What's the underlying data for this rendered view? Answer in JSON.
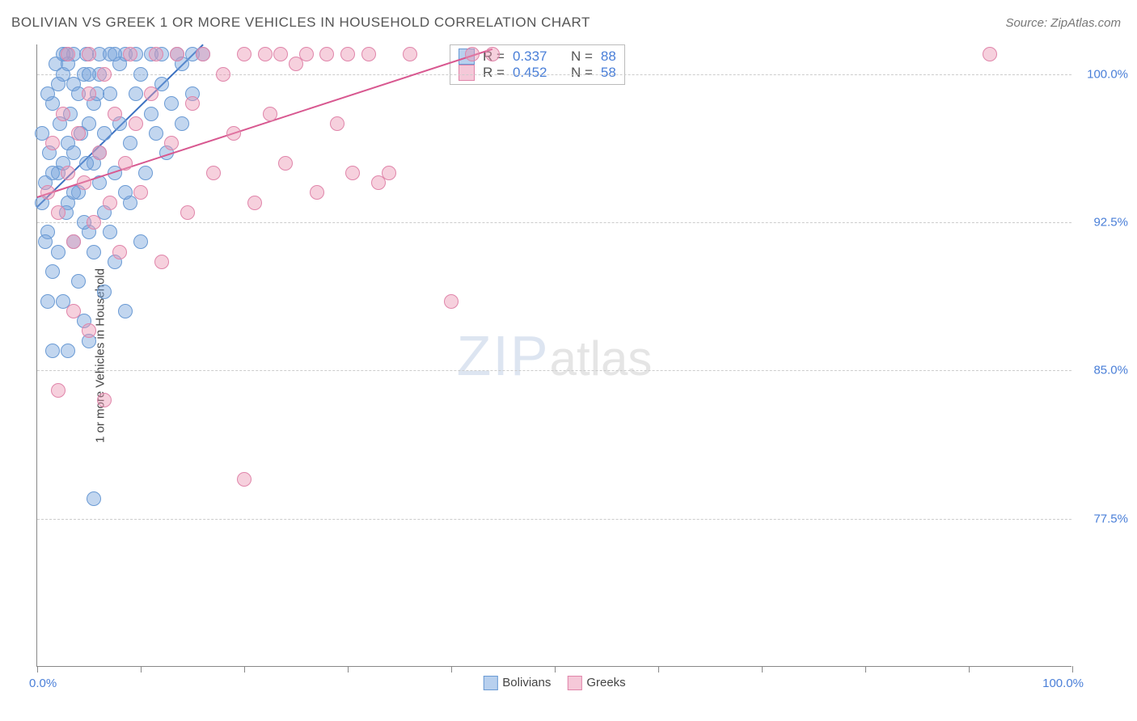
{
  "title": "BOLIVIAN VS GREEK 1 OR MORE VEHICLES IN HOUSEHOLD CORRELATION CHART",
  "source": "Source: ZipAtlas.com",
  "yaxis_title": "1 or more Vehicles in Household",
  "watermark_a": "ZIP",
  "watermark_b": "atlas",
  "chart": {
    "type": "scatter",
    "xlim": [
      0,
      100
    ],
    "ylim": [
      70,
      101.5
    ],
    "x_tick_positions": [
      0,
      10,
      20,
      30,
      40,
      50,
      60,
      70,
      80,
      90,
      100
    ],
    "x_labels": {
      "min": "0.0%",
      "max": "100.0%"
    },
    "y_ticks": [
      {
        "v": 77.5,
        "label": "77.5%"
      },
      {
        "v": 85.0,
        "label": "85.0%"
      },
      {
        "v": 92.5,
        "label": "92.5%"
      },
      {
        "v": 100.0,
        "label": "100.0%"
      }
    ],
    "grid_color": "#cccccc",
    "axis_color": "#888888",
    "series": [
      {
        "name": "Bolivians",
        "color_fill": "rgba(120,165,220,0.45)",
        "color_stroke": "#6a9ad4",
        "swatch_fill": "#b8d0ee",
        "swatch_border": "#6a9ad4",
        "R": "0.337",
        "N": "88",
        "trend": {
          "x1": 0,
          "y1": 93.3,
          "x2": 16,
          "y2": 101.5,
          "color": "#3d72c2"
        },
        "points": [
          [
            0.5,
            93.5
          ],
          [
            0.8,
            94.5
          ],
          [
            1.0,
            92.0
          ],
          [
            1.2,
            96.0
          ],
          [
            1.5,
            98.5
          ],
          [
            1.8,
            100.5
          ],
          [
            2.0,
            91.0
          ],
          [
            2.0,
            95.0
          ],
          [
            2.2,
            97.5
          ],
          [
            2.5,
            100.0
          ],
          [
            2.8,
            101.0
          ],
          [
            3.0,
            93.5
          ],
          [
            3.0,
            96.5
          ],
          [
            3.2,
            98.0
          ],
          [
            3.5,
            99.5
          ],
          [
            3.5,
            101.0
          ],
          [
            4.0,
            89.5
          ],
          [
            4.0,
            94.0
          ],
          [
            4.2,
            97.0
          ],
          [
            4.5,
            100.0
          ],
          [
            4.8,
            101.0
          ],
          [
            5.0,
            86.5
          ],
          [
            5.0,
            92.0
          ],
          [
            5.5,
            95.5
          ],
          [
            5.5,
            98.5
          ],
          [
            6.0,
            101.0
          ],
          [
            6.0,
            100.0
          ],
          [
            6.5,
            93.0
          ],
          [
            6.5,
            97.0
          ],
          [
            7.0,
            99.0
          ],
          [
            7.0,
            101.0
          ],
          [
            7.5,
            90.5
          ],
          [
            7.5,
            95.0
          ],
          [
            8.0,
            97.5
          ],
          [
            8.0,
            100.5
          ],
          [
            8.5,
            101.0
          ],
          [
            8.5,
            88.0
          ],
          [
            9.0,
            93.5
          ],
          [
            9.0,
            96.5
          ],
          [
            9.5,
            99.0
          ],
          [
            9.5,
            101.0
          ],
          [
            10.0,
            100.0
          ],
          [
            10.0,
            91.5
          ],
          [
            10.5,
            95.0
          ],
          [
            11.0,
            98.0
          ],
          [
            11.0,
            101.0
          ],
          [
            11.5,
            97.0
          ],
          [
            12.0,
            99.5
          ],
          [
            12.0,
            101.0
          ],
          [
            12.5,
            96.0
          ],
          [
            13.0,
            98.5
          ],
          [
            13.5,
            101.0
          ],
          [
            14.0,
            97.5
          ],
          [
            14.0,
            100.5
          ],
          [
            15.0,
            99.0
          ],
          [
            15.0,
            101.0
          ],
          [
            16.0,
            101.0
          ],
          [
            1.5,
            90.0
          ],
          [
            2.5,
            88.5
          ],
          [
            3.0,
            86.0
          ],
          [
            4.5,
            87.5
          ],
          [
            6.5,
            89.0
          ],
          [
            5.5,
            78.5
          ],
          [
            1.0,
            88.5
          ],
          [
            1.5,
            86.0
          ],
          [
            2.5,
            95.5
          ],
          [
            3.5,
            94.0
          ],
          [
            4.5,
            92.5
          ],
          [
            5.5,
            91.0
          ],
          [
            6.0,
            94.5
          ],
          [
            7.0,
            92.0
          ],
          [
            8.5,
            94.0
          ],
          [
            1.0,
            99.0
          ],
          [
            2.0,
            99.5
          ],
          [
            3.0,
            100.5
          ],
          [
            4.0,
            99.0
          ],
          [
            5.0,
            100.0
          ],
          [
            5.0,
            97.5
          ],
          [
            6.0,
            96.0
          ],
          [
            0.5,
            97.0
          ],
          [
            0.8,
            91.5
          ],
          [
            1.5,
            95.0
          ],
          [
            2.8,
            93.0
          ],
          [
            3.5,
            96.0
          ],
          [
            4.8,
            95.5
          ],
          [
            5.8,
            99.0
          ],
          [
            7.5,
            101.0
          ],
          [
            2.5,
            101.0
          ],
          [
            3.5,
            91.5
          ]
        ]
      },
      {
        "name": "Greeks",
        "color_fill": "rgba(235,150,180,0.45)",
        "color_stroke": "#e085aa",
        "swatch_fill": "#f5c8d8",
        "swatch_border": "#e085aa",
        "R": "0.452",
        "N": "58",
        "trend": {
          "x1": 0,
          "y1": 93.8,
          "x2": 44,
          "y2": 101.3,
          "color": "#d85890"
        },
        "points": [
          [
            1.0,
            94.0
          ],
          [
            1.5,
            96.5
          ],
          [
            2.0,
            93.0
          ],
          [
            2.5,
            98.0
          ],
          [
            3.0,
            95.0
          ],
          [
            3.0,
            101.0
          ],
          [
            3.5,
            91.5
          ],
          [
            4.0,
            97.0
          ],
          [
            4.5,
            94.5
          ],
          [
            5.0,
            99.0
          ],
          [
            5.0,
            101.0
          ],
          [
            5.5,
            92.5
          ],
          [
            6.0,
            96.0
          ],
          [
            6.5,
            100.0
          ],
          [
            7.0,
            93.5
          ],
          [
            7.5,
            98.0
          ],
          [
            8.0,
            91.0
          ],
          [
            8.5,
            95.5
          ],
          [
            9.0,
            101.0
          ],
          [
            9.5,
            97.5
          ],
          [
            10.0,
            94.0
          ],
          [
            11.0,
            99.0
          ],
          [
            11.5,
            101.0
          ],
          [
            12.0,
            90.5
          ],
          [
            13.0,
            96.5
          ],
          [
            13.5,
            101.0
          ],
          [
            14.5,
            93.0
          ],
          [
            15.0,
            98.5
          ],
          [
            16.0,
            101.0
          ],
          [
            17.0,
            95.0
          ],
          [
            18.0,
            100.0
          ],
          [
            19.0,
            97.0
          ],
          [
            6.5,
            83.5
          ],
          [
            20.0,
            101.0
          ],
          [
            21.0,
            93.5
          ],
          [
            22.0,
            101.0
          ],
          [
            22.5,
            98.0
          ],
          [
            23.5,
            101.0
          ],
          [
            24.0,
            95.5
          ],
          [
            25.0,
            100.5
          ],
          [
            26.0,
            101.0
          ],
          [
            27.0,
            94.0
          ],
          [
            28.0,
            101.0
          ],
          [
            29.0,
            97.5
          ],
          [
            30.0,
            101.0
          ],
          [
            30.5,
            95.0
          ],
          [
            32.0,
            101.0
          ],
          [
            33.0,
            94.5
          ],
          [
            34.0,
            95.0
          ],
          [
            36.0,
            101.0
          ],
          [
            42.0,
            101.0
          ],
          [
            44.0,
            101.0
          ],
          [
            20.0,
            79.5
          ],
          [
            40.0,
            88.5
          ],
          [
            92.0,
            101.0
          ],
          [
            3.5,
            88.0
          ],
          [
            5.0,
            87.0
          ],
          [
            2.0,
            84.0
          ]
        ]
      }
    ]
  },
  "legend_label_a": "Bolivians",
  "legend_label_b": "Greeks",
  "stats_labels": {
    "R": "R =",
    "N": "N ="
  }
}
